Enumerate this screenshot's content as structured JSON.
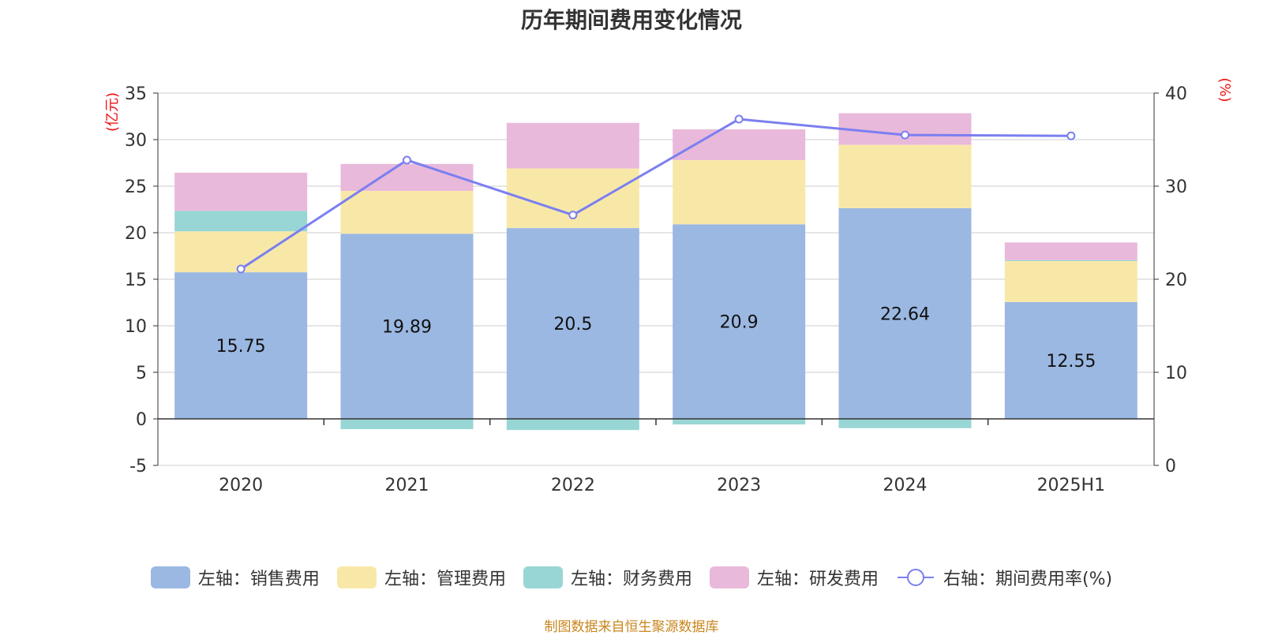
{
  "chart_data": {
    "type": "bar",
    "title": "历年期间费用变化情况",
    "categories": [
      "2020",
      "2021",
      "2022",
      "2023",
      "2024",
      "2025H1"
    ],
    "left_axis": {
      "unit_label": "(亿元)",
      "ylim": [
        -5,
        35
      ],
      "ticks": [
        "35",
        "30",
        "25",
        "20",
        "15",
        "10",
        "5",
        "0",
        "-5"
      ]
    },
    "right_axis": {
      "unit_label": "(%)",
      "ylim": [
        0,
        40
      ],
      "ticks": [
        "40",
        "30",
        "20",
        "10",
        "0"
      ]
    },
    "series": [
      {
        "name": "左轴：销售费用",
        "axis": "left",
        "type": "bar",
        "color": "#9bb8e2",
        "values": [
          15.75,
          19.89,
          20.5,
          20.9,
          22.64,
          12.55
        ],
        "labels": [
          "15.75",
          "19.89",
          "20.5",
          "20.9",
          "22.64",
          "12.55"
        ]
      },
      {
        "name": "左轴：管理费用",
        "axis": "left",
        "type": "bar",
        "color": "#f8e8a8",
        "values": [
          4.4,
          4.6,
          6.4,
          6.9,
          6.8,
          4.4
        ]
      },
      {
        "name": "左轴：财务费用",
        "axis": "left",
        "type": "bar",
        "color": "#98d6d5",
        "values": [
          2.2,
          -1.1,
          -1.2,
          -0.6,
          -1.0,
          0.1
        ]
      },
      {
        "name": "左轴：研发费用",
        "axis": "left",
        "type": "bar",
        "color": "#e8b9da",
        "values": [
          4.1,
          2.9,
          4.9,
          3.3,
          3.4,
          1.9
        ]
      },
      {
        "name": "右轴：期间费用率(%)",
        "axis": "right",
        "type": "line",
        "color": "#7b7ff0",
        "values": [
          21.1,
          32.8,
          26.9,
          37.2,
          35.5,
          35.4
        ]
      }
    ],
    "grid": true,
    "legend_position": "bottom"
  },
  "footer": "制图数据来自恒生聚源数据库"
}
